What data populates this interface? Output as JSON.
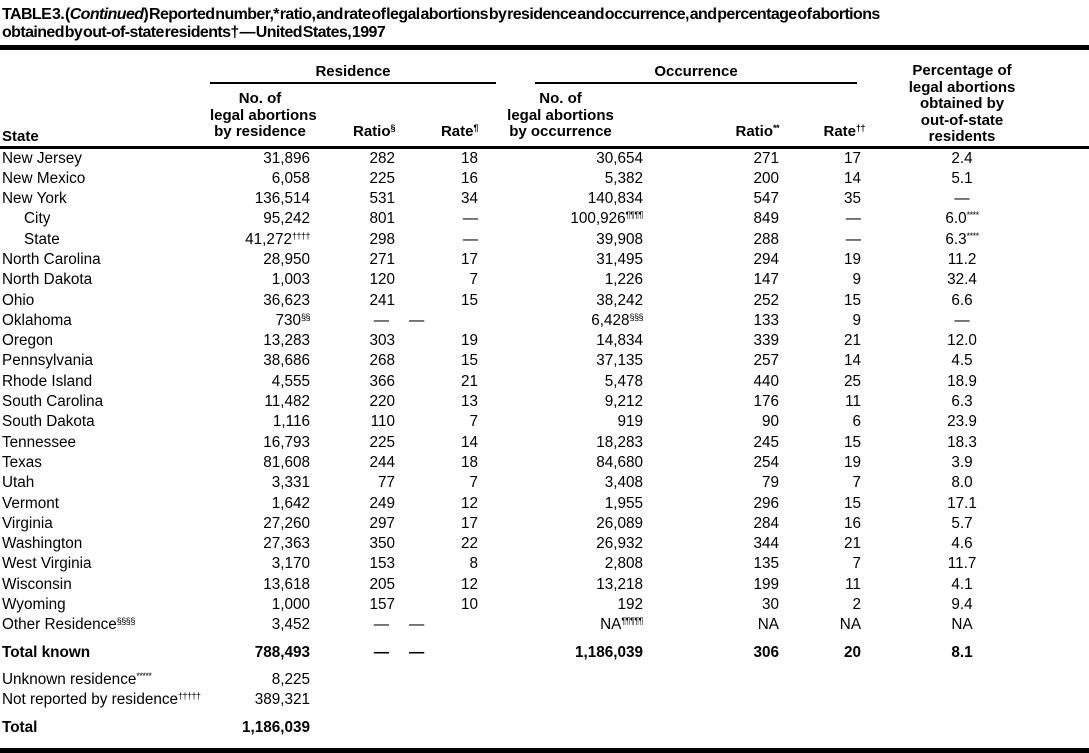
{
  "title": {
    "prefix": "TABLE 3. (",
    "continued": "Continued",
    "suffix_line1": ") Reported number,* ratio, and rate of legal abortions by residence and occurrence, and percentage of abortions",
    "line2": "obtained by out-of-state residents† — United States, 1997"
  },
  "table": {
    "head": {
      "state_label": "State",
      "residence_group": "Residence",
      "occurrence_group": "Occurrence",
      "res_no_lines": [
        "No. of",
        "legal abortions",
        "by residence"
      ],
      "res_ratio": {
        "label": "Ratio",
        "sup": "§"
      },
      "res_rate": {
        "label": "Rate",
        "sup": "¶"
      },
      "occ_no_lines": [
        "No. of",
        "legal abortions",
        "by occurrence"
      ],
      "occ_ratio": {
        "label": "Ratio",
        "sup": "**"
      },
      "occ_rate": {
        "label": "Rate",
        "sup": "††"
      },
      "pct_lines": [
        "Percentage of",
        "legal abortions",
        "obtained by",
        "out-of-state",
        "residents"
      ]
    },
    "rows": [
      {
        "state": "New Jersey",
        "res_no": "31,896",
        "res_ratio": "282",
        "res_rate": "18",
        "occ_no": "30,654",
        "occ_ratio": "271",
        "occ_rate": "17",
        "pct": "2.4"
      },
      {
        "state": "New Mexico",
        "res_no": "6,058",
        "res_ratio": "225",
        "res_rate": "16",
        "occ_no": "5,382",
        "occ_ratio": "200",
        "occ_rate": "14",
        "pct": "5.1"
      },
      {
        "state": "New York",
        "res_no": "136,514",
        "res_ratio": "531",
        "res_rate": "34",
        "occ_no": "140,834",
        "occ_ratio": "547",
        "occ_rate": "35",
        "pct": "—"
      },
      {
        "state": "City",
        "indent": true,
        "res_no": "95,242",
        "res_ratio": "801",
        "res_rate": "—",
        "occ_no": "100,926",
        "occ_no_sup": "¶¶¶¶",
        "occ_ratio": "849",
        "occ_rate": "—",
        "pct": "6.0",
        "pct_sup": "****"
      },
      {
        "state": "State",
        "indent": true,
        "res_no": "41,272",
        "res_no_sup": "††††",
        "res_ratio": "298",
        "res_rate": "—",
        "occ_no": "39,908",
        "occ_ratio": "288",
        "occ_rate": "—",
        "pct": "6.3",
        "pct_sup": "****"
      },
      {
        "state": "North Carolina",
        "res_no": "28,950",
        "res_ratio": "271",
        "res_rate": "17",
        "occ_no": "31,495",
        "occ_ratio": "294",
        "occ_rate": "19",
        "pct": "11.2"
      },
      {
        "state": "North Dakota",
        "res_no": "1,003",
        "res_ratio": "120",
        "res_rate": "7",
        "occ_no": "1,226",
        "occ_ratio": "147",
        "occ_rate": "9",
        "pct": "32.4"
      },
      {
        "state": "Ohio",
        "res_no": "36,623",
        "res_ratio": "241",
        "res_rate": "15",
        "occ_no": "38,242",
        "occ_ratio": "252",
        "occ_rate": "15",
        "pct": "6.6"
      },
      {
        "state": "Oklahoma",
        "res_no": "730",
        "res_no_sup": "§§",
        "res_ratio": "—",
        "res_rate": "—",
        "dash_shift": true,
        "occ_no": "6,428",
        "occ_no_sup": "§§§",
        "occ_ratio": "133",
        "occ_rate": "9",
        "pct": "—"
      },
      {
        "state": "Oregon",
        "res_no": "13,283",
        "res_ratio": "303",
        "res_rate": "19",
        "occ_no": "14,834",
        "occ_ratio": "339",
        "occ_rate": "21",
        "pct": "12.0"
      },
      {
        "state": "Pennsylvania",
        "res_no": "38,686",
        "res_ratio": "268",
        "res_rate": "15",
        "occ_no": "37,135",
        "occ_ratio": "257",
        "occ_rate": "14",
        "pct": "4.5"
      },
      {
        "state": "Rhode Island",
        "res_no": "4,555",
        "res_ratio": "366",
        "res_rate": "21",
        "occ_no": "5,478",
        "occ_ratio": "440",
        "occ_rate": "25",
        "pct": "18.9"
      },
      {
        "state": "South Carolina",
        "res_no": "11,482",
        "res_ratio": "220",
        "res_rate": "13",
        "occ_no": "9,212",
        "occ_ratio": "176",
        "occ_rate": "11",
        "pct": "6.3"
      },
      {
        "state": "South Dakota",
        "res_no": "1,116",
        "res_ratio": "110",
        "res_rate": "7",
        "occ_no": "919",
        "occ_ratio": "90",
        "occ_rate": "6",
        "pct": "23.9"
      },
      {
        "state": "Tennessee",
        "res_no": "16,793",
        "res_ratio": "225",
        "res_rate": "14",
        "occ_no": "18,283",
        "occ_ratio": "245",
        "occ_rate": "15",
        "pct": "18.3"
      },
      {
        "state": "Texas",
        "res_no": "81,608",
        "res_ratio": "244",
        "res_rate": "18",
        "occ_no": "84,680",
        "occ_ratio": "254",
        "occ_rate": "19",
        "pct": "3.9"
      },
      {
        "state": "Utah",
        "res_no": "3,331",
        "res_ratio": "77",
        "res_rate": "7",
        "occ_no": "3,408",
        "occ_ratio": "79",
        "occ_rate": "7",
        "pct": "8.0"
      },
      {
        "state": "Vermont",
        "res_no": "1,642",
        "res_ratio": "249",
        "res_rate": "12",
        "occ_no": "1,955",
        "occ_ratio": "296",
        "occ_rate": "15",
        "pct": "17.1"
      },
      {
        "state": "Virginia",
        "res_no": "27,260",
        "res_ratio": "297",
        "res_rate": "17",
        "occ_no": "26,089",
        "occ_ratio": "284",
        "occ_rate": "16",
        "pct": "5.7"
      },
      {
        "state": "Washington",
        "res_no": "27,363",
        "res_ratio": "350",
        "res_rate": "22",
        "occ_no": "26,932",
        "occ_ratio": "344",
        "occ_rate": "21",
        "pct": "4.6"
      },
      {
        "state": "West Virginia",
        "res_no": "3,170",
        "res_ratio": "153",
        "res_rate": "8",
        "occ_no": "2,808",
        "occ_ratio": "135",
        "occ_rate": "7",
        "pct": "11.7"
      },
      {
        "state": "Wisconsin",
        "res_no": "13,618",
        "res_ratio": "205",
        "res_rate": "12",
        "occ_no": "13,218",
        "occ_ratio": "199",
        "occ_rate": "11",
        "pct": "4.1"
      },
      {
        "state": "Wyoming",
        "res_no": "1,000",
        "res_ratio": "157",
        "res_rate": "10",
        "occ_no": "192",
        "occ_ratio": "30",
        "occ_rate": "2",
        "pct": "9.4"
      },
      {
        "state": "Other Residence",
        "state_sup": "§§§§",
        "res_no": "3,452",
        "res_ratio": "—",
        "res_rate": "—",
        "dash_shift": true,
        "occ_no": "NA",
        "occ_no_sup": "¶¶¶¶¶",
        "occ_ratio": "NA",
        "occ_rate": "NA",
        "pct": "NA"
      },
      {
        "state": "Total known",
        "bold": true,
        "gap": true,
        "res_no": "788,493",
        "res_ratio": "—",
        "res_rate": "—",
        "dash_shift": true,
        "occ_no": "1,186,039",
        "occ_ratio": "306",
        "occ_rate": "20",
        "pct": "8.1"
      }
    ],
    "footer_rows": [
      {
        "state": "Unknown residence",
        "state_sup": "*****",
        "res_no": "8,225",
        "gap": true
      },
      {
        "state": "Not reported by residence",
        "state_sup": "†††††",
        "res_no": "389,321"
      },
      {
        "state": "Total",
        "bold": true,
        "gap": true,
        "res_no": "1,186,039"
      }
    ]
  }
}
